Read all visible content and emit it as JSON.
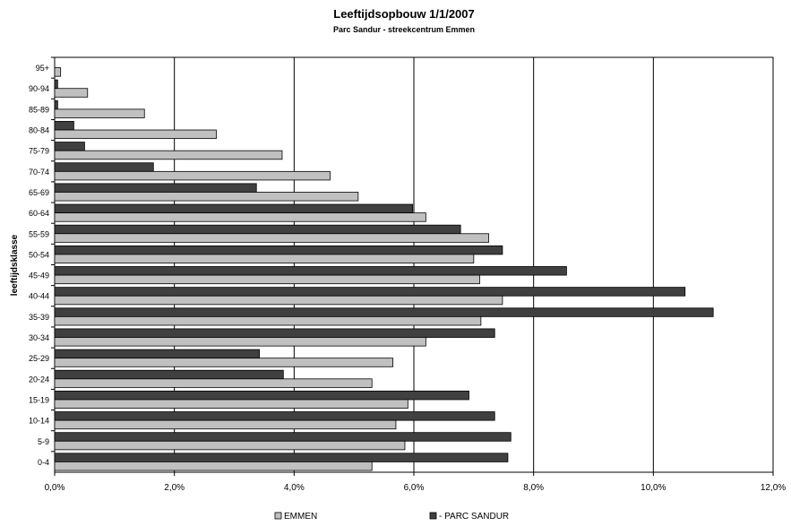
{
  "chart_data": {
    "type": "bar",
    "orientation": "horizontal",
    "title": "Leeftijdsopbouw 1/1/2007",
    "subtitle": "Parc Sandur - streekcentrum Emmen",
    "xlabel": "",
    "ylabel": "leeftijdsklasse",
    "xlim": [
      0,
      12
    ],
    "x_ticks": [
      "0,0%",
      "2,0%",
      "4,0%",
      "6,0%",
      "8,0%",
      "10,0%",
      "12,0%"
    ],
    "grid": "vertical major gridlines",
    "legend_position": "bottom",
    "categories": [
      "0-4",
      "5-9",
      "10-14",
      "15-19",
      "20-24",
      "25-29",
      "30-34",
      "35-39",
      "40-44",
      "45-49",
      "50-54",
      "55-59",
      "60-64",
      "65-69",
      "70-74",
      "75-79",
      "80-84",
      "85-89",
      "90-94",
      "95+"
    ],
    "series": [
      {
        "name": "EMMEN",
        "color": "#c0c0c0",
        "values": [
          5.3,
          5.85,
          5.7,
          5.9,
          5.3,
          5.65,
          6.2,
          7.12,
          7.48,
          7.1,
          7.0,
          7.25,
          6.2,
          5.07,
          4.6,
          3.8,
          2.7,
          1.5,
          0.55,
          0.1
        ]
      },
      {
        "name": "- PARC SANDUR",
        "color": "#404040",
        "values": [
          7.57,
          7.62,
          7.35,
          6.92,
          3.82,
          3.42,
          7.35,
          11.0,
          10.53,
          8.55,
          7.48,
          6.78,
          5.98,
          3.37,
          1.65,
          0.5,
          0.32,
          0.05,
          0.05,
          0.0
        ]
      }
    ]
  }
}
